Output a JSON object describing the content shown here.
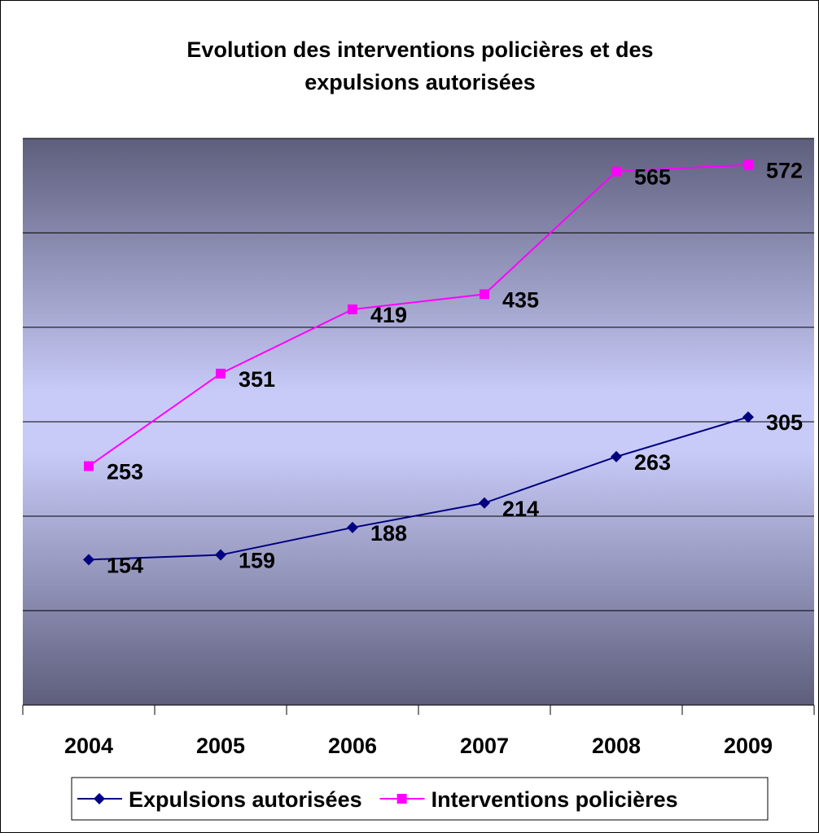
{
  "chart_data": {
    "type": "line",
    "title": "Evolution des interventions policières et des expulsions autorisées",
    "categories": [
      "2004",
      "2005",
      "2006",
      "2007",
      "2008",
      "2009"
    ],
    "series": [
      {
        "name": "Expulsions autorisées",
        "color": "#000080",
        "marker": "diamond",
        "values": [
          154,
          159,
          188,
          214,
          263,
          305
        ]
      },
      {
        "name": "Interventions policières",
        "color": "#ff00ff",
        "marker": "square",
        "values": [
          253,
          351,
          419,
          435,
          565,
          572
        ]
      }
    ],
    "ylim": [
      0,
      600
    ],
    "yticks": [
      0,
      100,
      200,
      300,
      400,
      500,
      600
    ],
    "grid": true,
    "legend": "bottom"
  }
}
